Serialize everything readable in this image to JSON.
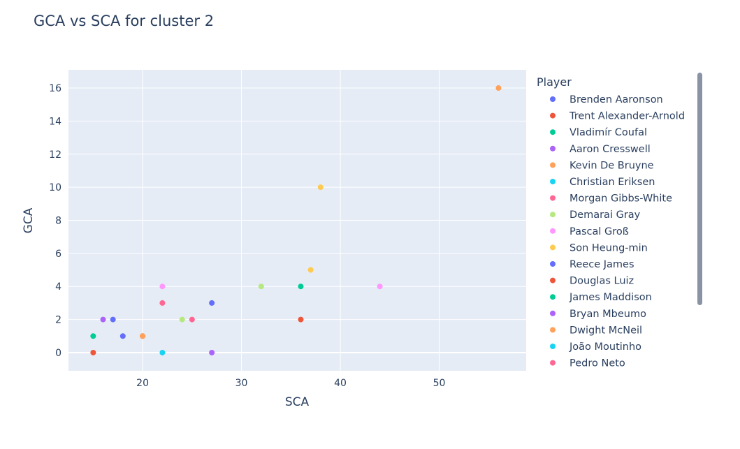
{
  "chart_data": {
    "type": "scatter",
    "title": "GCA vs SCA for cluster 2",
    "xlabel": "SCA",
    "ylabel": "GCA",
    "xlim": [
      12.5,
      58.8
    ],
    "ylim": [
      -1.1,
      17.1
    ],
    "xticks": [
      20,
      30,
      40,
      50
    ],
    "yticks": [
      0,
      2,
      4,
      6,
      8,
      10,
      12,
      14,
      16
    ],
    "grid": true,
    "legend": {
      "title": "Player",
      "placement": "right"
    },
    "series": [
      {
        "name": "Brenden Aaronson",
        "color": "#636efa",
        "points": [
          [
            17,
            2
          ]
        ]
      },
      {
        "name": "Trent Alexander-Arnold",
        "color": "#EF553B",
        "points": [
          [
            36,
            2
          ],
          [
            20,
            1
          ]
        ]
      },
      {
        "name": "Vladimír Coufal",
        "color": "#00cc96",
        "points": [
          [
            36,
            4
          ]
        ]
      },
      {
        "name": "Aaron Cresswell",
        "color": "#ab63fa",
        "points": [
          [
            27,
            0
          ]
        ]
      },
      {
        "name": "Kevin De Bruyne",
        "color": "#FFA15A",
        "points": [
          [
            56,
            16
          ]
        ]
      },
      {
        "name": "Christian Eriksen",
        "color": "#19d3f3",
        "points": [
          [
            22,
            0
          ]
        ]
      },
      {
        "name": "Morgan Gibbs-White",
        "color": "#FF6692",
        "points": [
          [
            22,
            3
          ]
        ]
      },
      {
        "name": "Demarai Gray",
        "color": "#B6E880",
        "points": [
          [
            32,
            4
          ],
          [
            24,
            2
          ]
        ]
      },
      {
        "name": "Pascal Groß",
        "color": "#FF97FF",
        "points": [
          [
            44,
            4
          ],
          [
            22,
            4
          ]
        ]
      },
      {
        "name": "Son Heung-min",
        "color": "#FECB52",
        "points": [
          [
            38,
            10
          ],
          [
            37,
            5
          ]
        ]
      },
      {
        "name": "Reece James",
        "color": "#636efa",
        "points": [
          [
            27,
            3
          ],
          [
            18,
            1
          ]
        ]
      },
      {
        "name": "Douglas Luiz",
        "color": "#EF553B",
        "points": [
          [
            15,
            0
          ]
        ]
      },
      {
        "name": "James Maddison",
        "color": "#00cc96",
        "points": [
          [
            15,
            1
          ]
        ]
      },
      {
        "name": "Bryan Mbeumo",
        "color": "#ab63fa",
        "points": [
          [
            16,
            2
          ]
        ]
      },
      {
        "name": "Dwight McNeil",
        "color": "#FFA15A",
        "points": [
          [
            20,
            1
          ]
        ]
      },
      {
        "name": "João Moutinho",
        "color": "#19d3f3",
        "points": []
      },
      {
        "name": "Pedro Neto",
        "color": "#FF6692",
        "points": [
          [
            25,
            2
          ]
        ]
      }
    ]
  }
}
